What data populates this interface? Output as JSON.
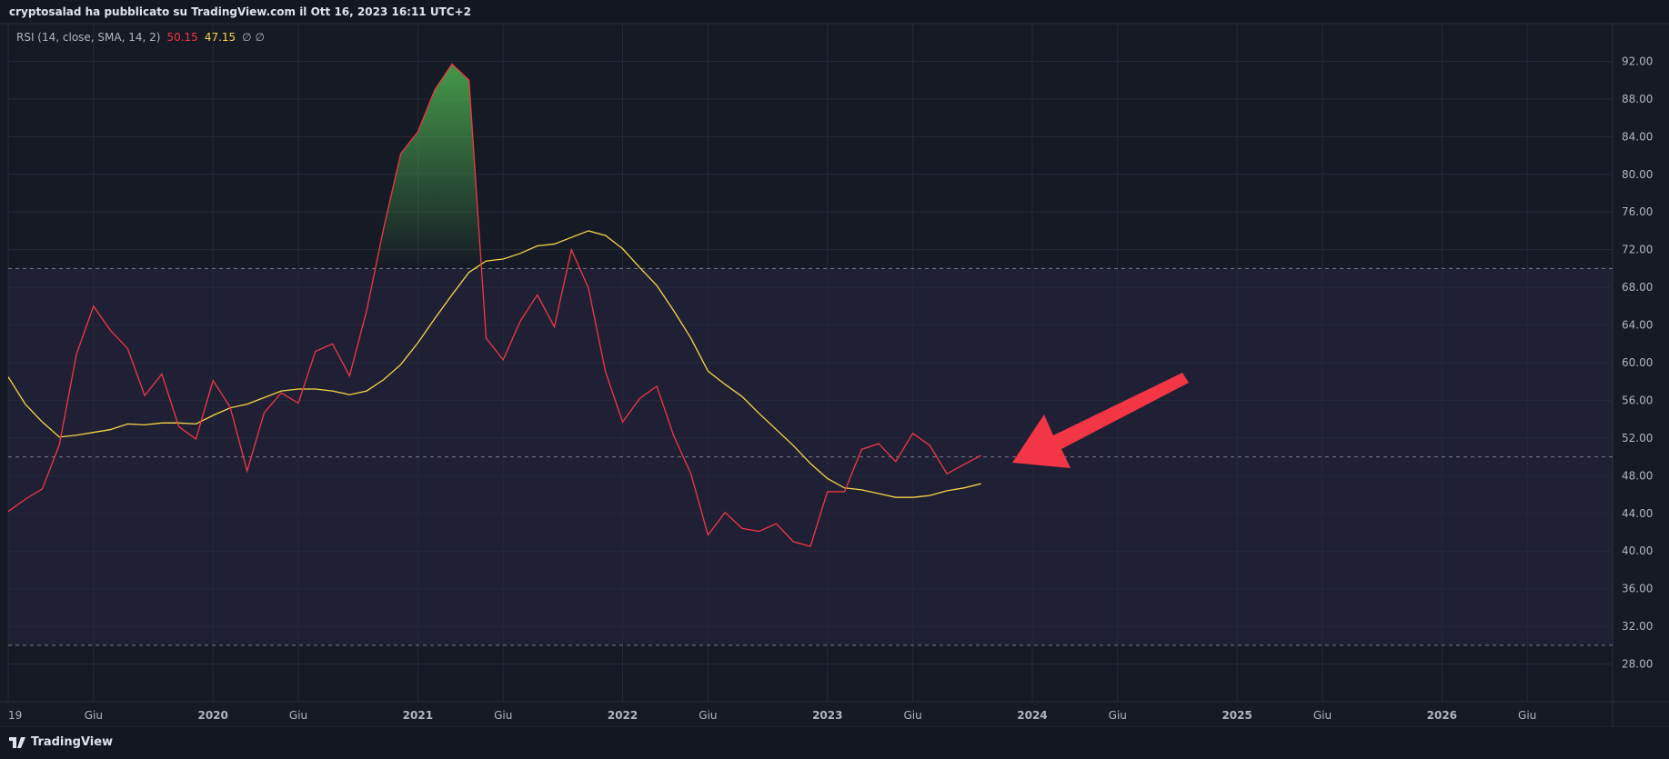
{
  "header": {
    "title": "cryptosalad ha pubblicato su TradingView.com il Ott 16, 2023 16:11 UTC+2"
  },
  "chart_data": {
    "type": "line",
    "legend": "RSI (14, close, SMA, 14, 2)",
    "legend_extra": "∅ ∅",
    "x": [
      "2019-01",
      "2019-02",
      "2019-03",
      "2019-04",
      "2019-05",
      "2019-06",
      "2019-07",
      "2019-08",
      "2019-09",
      "2019-10",
      "2019-11",
      "2019-12",
      "2020-01",
      "2020-02",
      "2020-03",
      "2020-04",
      "2020-05",
      "2020-06",
      "2020-07",
      "2020-08",
      "2020-09",
      "2020-10",
      "2020-11",
      "2020-12",
      "2021-01",
      "2021-02",
      "2021-03",
      "2021-04",
      "2021-05",
      "2021-06",
      "2021-07",
      "2021-08",
      "2021-09",
      "2021-10",
      "2021-11",
      "2021-12",
      "2022-01",
      "2022-02",
      "2022-03",
      "2022-04",
      "2022-05",
      "2022-06",
      "2022-07",
      "2022-08",
      "2022-09",
      "2022-10",
      "2022-11",
      "2022-12",
      "2023-01",
      "2023-02",
      "2023-03",
      "2023-04",
      "2023-05",
      "2023-06",
      "2023-07",
      "2023-08",
      "2023-09",
      "2023-10"
    ],
    "series": [
      {
        "color": "#f23645",
        "values": [
          44.2,
          45.5,
          46.6,
          51.3,
          60.9,
          66.0,
          63.4,
          61.5,
          56.5,
          58.8,
          53.2,
          51.9,
          58.1,
          55.3,
          48.5,
          54.7,
          56.8,
          55.7,
          61.2,
          62.0,
          58.6,
          65.5,
          74.3,
          82.2,
          84.5,
          89.0,
          91.7,
          90.0,
          62.6,
          60.3,
          64.4,
          67.2,
          63.8,
          72.0,
          67.9,
          59.0,
          53.7,
          56.2,
          57.5,
          52.2,
          48.2,
          41.7,
          44.1,
          42.4,
          42.1,
          42.9,
          41.0,
          40.5,
          46.3,
          46.3,
          50.8,
          51.4,
          49.5,
          52.5,
          51.2,
          48.2,
          49.2,
          50.15
        ]
      },
      {
        "color": "#f5d547",
        "values": [
          58.5,
          55.6,
          53.7,
          52.1,
          52.3,
          52.6,
          52.9,
          53.5,
          53.4,
          53.6,
          53.6,
          53.5,
          54.4,
          55.2,
          55.6,
          56.3,
          57.0,
          57.2,
          57.2,
          57.0,
          56.6,
          57.0,
          58.2,
          59.8,
          62.1,
          64.7,
          67.2,
          69.6,
          70.8,
          71.0,
          71.6,
          72.4,
          72.6,
          73.3,
          74.0,
          73.5,
          72.1,
          70.1,
          68.2,
          65.5,
          62.6,
          59.1,
          57.7,
          56.4,
          54.6,
          52.9,
          51.2,
          49.3,
          47.7,
          46.7,
          46.5,
          46.1,
          45.7,
          45.7,
          45.9,
          46.4,
          46.7,
          47.15
        ]
      }
    ],
    "xlim": [
      "2019-01",
      "2026-11"
    ],
    "xticks": [
      {
        "value": "2019-01",
        "label": "19"
      },
      {
        "value": "2019-06",
        "label": "Giu"
      },
      {
        "value": "2020-01",
        "label": "2020"
      },
      {
        "value": "2020-06",
        "label": "Giu"
      },
      {
        "value": "2021-01",
        "label": "2021"
      },
      {
        "value": "2021-06",
        "label": "Giu"
      },
      {
        "value": "2022-01",
        "label": "2022"
      },
      {
        "value": "2022-06",
        "label": "Giu"
      },
      {
        "value": "2023-01",
        "label": "2023"
      },
      {
        "value": "2023-06",
        "label": "Giu"
      },
      {
        "value": "2024-01",
        "label": "2024"
      },
      {
        "value": "2024-06",
        "label": "Giu"
      },
      {
        "value": "2025-01",
        "label": "2025"
      },
      {
        "value": "2025-06",
        "label": "Giu"
      },
      {
        "value": "2026-01",
        "label": "2026"
      },
      {
        "value": "2026-06",
        "label": "Giu"
      }
    ],
    "ylim": [
      24,
      96
    ],
    "yticks": [
      {
        "value": 28,
        "label": "28.00"
      },
      {
        "value": 32,
        "label": "32.00"
      },
      {
        "value": 36,
        "label": "36.00"
      },
      {
        "value": 40,
        "label": "40.00"
      },
      {
        "value": 44,
        "label": "44.00"
      },
      {
        "value": 48,
        "label": "48.00"
      },
      {
        "value": 52,
        "label": "52.00"
      },
      {
        "value": 56,
        "label": "56.00"
      },
      {
        "value": 60,
        "label": "60.00"
      },
      {
        "value": 64,
        "label": "64.00"
      },
      {
        "value": 68,
        "label": "68.00"
      },
      {
        "value": 72,
        "label": "72.00"
      },
      {
        "value": 76,
        "label": "76.00"
      },
      {
        "value": 80,
        "label": "80.00"
      },
      {
        "value": 84,
        "label": "84.00"
      },
      {
        "value": 88,
        "label": "88.00"
      },
      {
        "value": 92,
        "label": "92.00"
      }
    ],
    "levels": {
      "upper": 70,
      "middle": 50,
      "lower": 30
    },
    "band_color": "#7e57c2",
    "overbought_color": "#4caf50",
    "grid": true
  },
  "footer": {
    "brand": "TradingView"
  }
}
